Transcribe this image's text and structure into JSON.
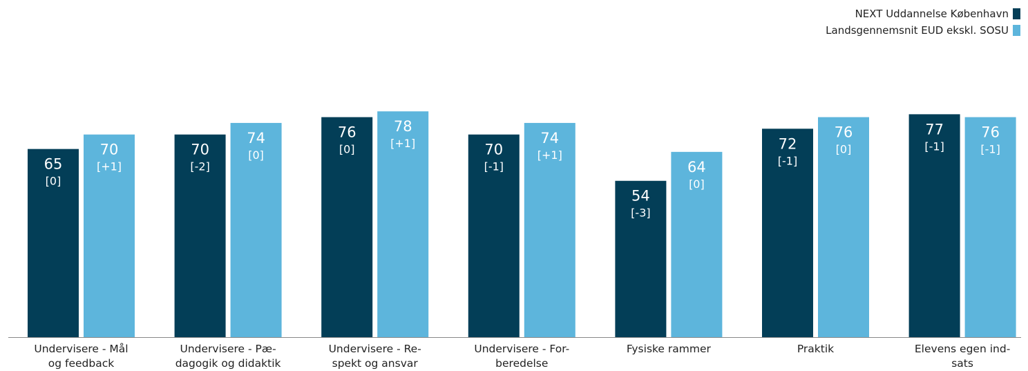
{
  "colors": {
    "series1": "#033e57",
    "series2": "#5db5dc",
    "axis": "#888888"
  },
  "legend": {
    "items": [
      {
        "label": "NEXT Uddannelse København"
      },
      {
        "label": "Landsgennemsnit EUD ekskl. SOSU"
      }
    ]
  },
  "chart_data": {
    "type": "bar",
    "categories": [
      [
        "Undervisere - Mål",
        "og feedback"
      ],
      [
        "Undervisere - Pæ-",
        "dagogik og didaktik"
      ],
      [
        "Undervisere - Re-",
        "spekt og ansvar"
      ],
      [
        "Undervisere - For-",
        "beredelse"
      ],
      [
        "Fysiske rammer"
      ],
      [
        "Praktik"
      ],
      [
        "Elevens egen ind-",
        "sats"
      ]
    ],
    "series": [
      {
        "name": "NEXT Uddannelse København",
        "values": [
          65,
          70,
          76,
          70,
          54,
          72,
          77
        ],
        "changes": [
          "[0]",
          "[-2]",
          "[0]",
          "[-1]",
          "[-3]",
          "[-1]",
          "[-1]"
        ]
      },
      {
        "name": "Landsgennemsnit EUD ekskl. SOSU",
        "values": [
          70,
          74,
          78,
          74,
          64,
          76,
          76
        ],
        "changes": [
          "[+1]",
          "[0]",
          "[+1]",
          "[+1]",
          "[0]",
          "[0]",
          "[-1]"
        ]
      }
    ],
    "ylim": [
      0,
      100
    ],
    "legend_position": "top-right",
    "grid": false
  }
}
